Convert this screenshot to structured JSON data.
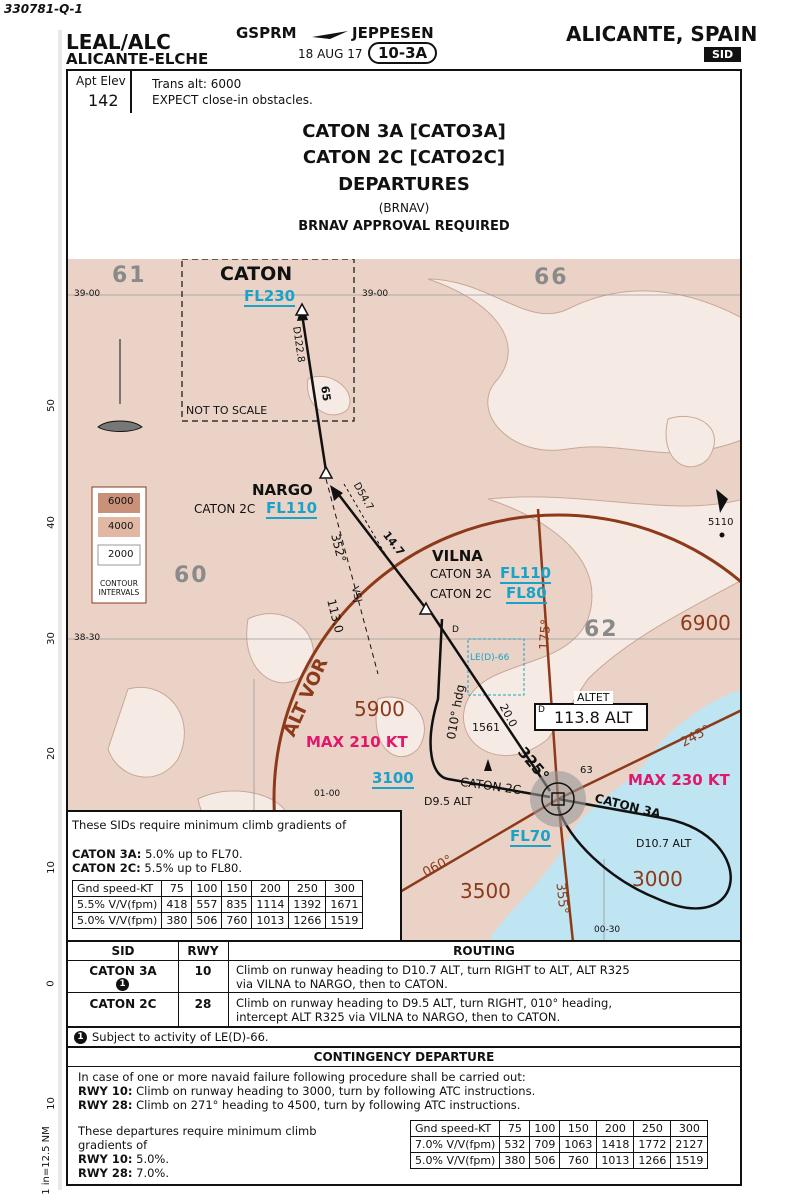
{
  "page_id": "330781-Q-1",
  "header": {
    "icao": "LEAL/ALC",
    "airport": "ALICANTE-ELCHE",
    "code": "GSPRM",
    "provider": "JEPPESEN",
    "date": "18 AUG 17",
    "chart_no": "10-3A",
    "city": "ALICANTE, SPAIN",
    "chart_type": "SID"
  },
  "info": {
    "apt_elev_label": "Apt Elev",
    "apt_elev": "142",
    "trans_alt": "Trans alt: 6000",
    "obstacle_note": "EXPECT close-in obstacles."
  },
  "title": {
    "line1": "CATON 3A [CATO3A]",
    "line2": "CATON 2C [CATO2C]",
    "line3": "DEPARTURES",
    "line4": "(BRNAV)",
    "line5": "BRNAV APPROVAL REQUIRED"
  },
  "map": {
    "grid": {
      "g61": "61",
      "g66": "66",
      "g60": "60",
      "g62": "62"
    },
    "lat_39": "39-00",
    "lat_3830": "38-30",
    "lon_0100": "01-00",
    "lon_0030": "00-30",
    "not_to_scale": "NOT TO SCALE",
    "contour": {
      "c6000": "6000",
      "c4000": "4000",
      "c2000": "2000",
      "label": "CONTOUR INTERVALS"
    },
    "caton": {
      "name": "CATON",
      "fl": "FL230",
      "dist": "D122.8"
    },
    "leg_caton_nargo": "65",
    "nargo": {
      "name": "NARGO",
      "constraint_label": "CATON 2C",
      "fl": "FL110",
      "dist": "D54.7"
    },
    "vilna": {
      "name": "VILNA",
      "c3a": "CATON 3A",
      "fl3a": "FL110",
      "c2c": "CATON 2C",
      "fl2c": "FL80"
    },
    "leg_vilna_nargo": "14.7",
    "radial_352": "352°",
    "vsj": "VSJ",
    "vsj_freq": "113.0",
    "dist_d": "D",
    "dist_200": "20.0",
    "restricted": "LE(D)-66",
    "hdg": "010° hdg",
    "obst_1561": "1561",
    "r325": "325°",
    "r175": "175°",
    "r245": "245°",
    "r060": "060°",
    "r355": "355°",
    "alt_vor": "ALT VOR",
    "navaid": {
      "name": "ALTET",
      "freq": "113.8 ALT",
      "d": "D"
    },
    "msa_6900": "6900",
    "msa_5900": "5900",
    "msa_3500": "3500",
    "msa_3000": "3000",
    "max210": "MAX 210 KT",
    "max230": "MAX 230 KT",
    "alt_3100": "3100",
    "fl70": "FL70",
    "caton2c": "CATON 2C",
    "caton3a": "CATON 3A",
    "d95": "D9.5 ALT",
    "d107": "D10.7 ALT",
    "obst_5110": "5110",
    "rwy_63": "63"
  },
  "gradients": {
    "intro": "These SIDs require minimum climb gradients of",
    "c3a_label": "CATON 3A:",
    "c3a": "5.0% up to FL70.",
    "c2c_label": "CATON 2C:",
    "c2c": "5.5% up to FL80.",
    "header": [
      "Gnd speed-KT",
      "75",
      "100",
      "150",
      "200",
      "250",
      "300"
    ],
    "rows": [
      [
        "5.5% V/V(fpm)",
        "418",
        "557",
        "835",
        "1114",
        "1392",
        "1671"
      ],
      [
        "5.0% V/V(fpm)",
        "380",
        "506",
        "760",
        "1013",
        "1266",
        "1519"
      ]
    ]
  },
  "routing": {
    "col_sid": "SID",
    "col_rwy": "RWY",
    "col_routing": "ROUTING",
    "r1_sid": "CATON 3A",
    "r1_note": "1",
    "r1_rwy": "10",
    "r1_text": "Climb on runway heading to D10.7 ALT, turn RIGHT to ALT, ALT R325 via VILNA to NARGO, then to CATON.",
    "r2_sid": "CATON 2C",
    "r2_rwy": "28",
    "r2_text": "Climb on runway heading to D9.5 ALT, turn RIGHT, 010° heading, intercept ALT R325 via VILNA to NARGO, then to CATON.",
    "footnote_num": "1",
    "footnote": "Subject to activity of LE(D)-66."
  },
  "contingency": {
    "title": "CONTINGENCY DEPARTURE",
    "line1": "In case of one or more navaid failure following procedure shall be carried out:",
    "rwy10_label": "RWY 10:",
    "rwy10": "Climb on runway heading to 3000, turn by following ATC instructions.",
    "rwy28_label": "RWY 28:",
    "rwy28": "Climb on 271° heading to 4500, turn by following ATC instructions.",
    "req1": "These departures require minimum climb",
    "req2": "gradients of",
    "req_rwy10_label": "RWY 10:",
    "req_rwy10": "5.0%.",
    "req_rwy28_label": "RWY 28:",
    "req_rwy28": "7.0%.",
    "header": [
      "Gnd speed-KT",
      "75",
      "100",
      "150",
      "200",
      "250",
      "300"
    ],
    "rows": [
      [
        "7.0% V/V(fpm)",
        "532",
        "709",
        "1063",
        "1418",
        "1772",
        "2127"
      ],
      [
        "5.0% V/V(fpm)",
        "380",
        "506",
        "760",
        "1013",
        "1266",
        "1519"
      ]
    ]
  },
  "margin": {
    "m50": "50",
    "m40": "40",
    "m30": "30",
    "m20": "20",
    "m10": "10",
    "m0": "0",
    "m10b": "10",
    "scale": "1 in=12.5 NM"
  }
}
